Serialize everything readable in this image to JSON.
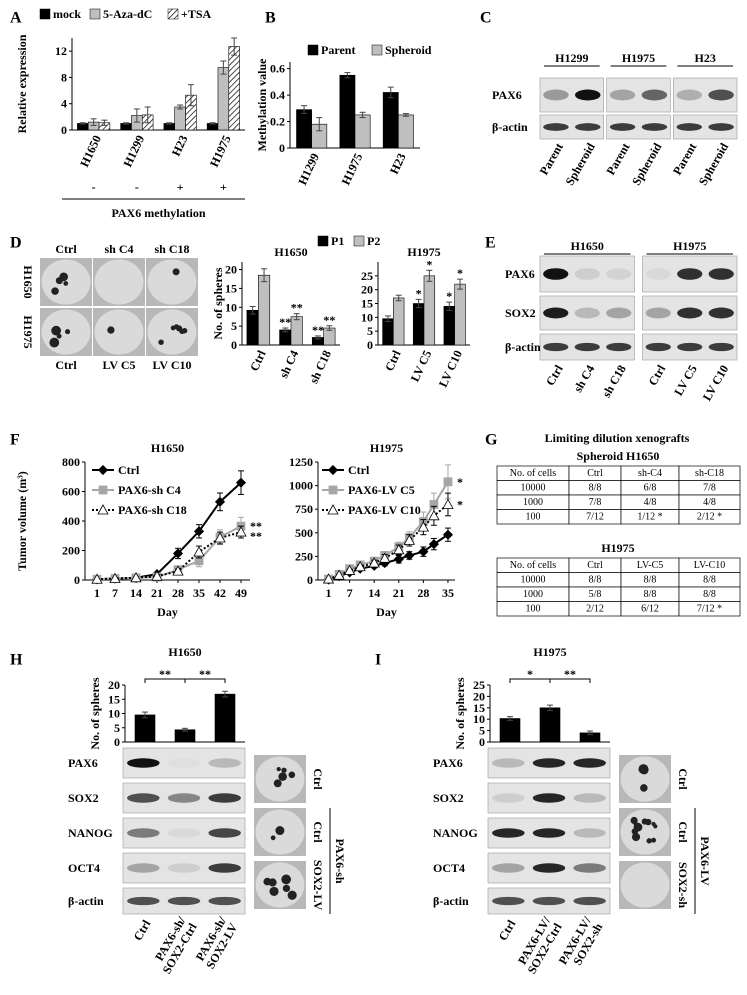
{
  "panel_labels": [
    "A",
    "B",
    "C",
    "D",
    "E",
    "F",
    "G",
    "H",
    "I"
  ],
  "chart_data": [
    {
      "type": "bar",
      "ylabel": "Relative expression",
      "categories": [
        "H1650",
        "H1299",
        "H23",
        "H1975"
      ],
      "series": [
        {
          "name": "mock",
          "color": "#000000",
          "values": [
            1,
            1,
            1,
            1
          ],
          "errors": [
            0.1,
            0.1,
            0.1,
            0.1
          ]
        },
        {
          "name": "5-Aza-dC",
          "color": "#bfbfbf",
          "values": [
            1.2,
            2.2,
            3.5,
            9.5
          ],
          "errors": [
            0.5,
            1.0,
            0.3,
            1.0
          ]
        },
        {
          "name": "+TSA",
          "color": "#ffffff",
          "pattern": "hatch",
          "values": [
            1.1,
            2.3,
            5.3,
            12.7
          ],
          "errors": [
            0.4,
            1.2,
            1.6,
            1.3
          ]
        }
      ],
      "ylim": [
        0,
        14
      ],
      "yticks": [
        0,
        4,
        8,
        12
      ],
      "group_marks": [
        "-",
        "-",
        "+",
        "+"
      ],
      "group_label": "PAX6 methylation"
    },
    {
      "type": "bar",
      "ylabel": "Methylation value",
      "categories": [
        "H1299",
        "H1975",
        "H23"
      ],
      "series": [
        {
          "name": "Parent",
          "color": "#000000",
          "values": [
            0.29,
            0.55,
            0.42
          ],
          "errors": [
            0.03,
            0.02,
            0.04
          ]
        },
        {
          "name": "Spheroid",
          "color": "#bfbfbf",
          "values": [
            0.18,
            0.25,
            0.25
          ],
          "errors": [
            0.05,
            0.02,
            0.01
          ]
        }
      ],
      "ylim": [
        0,
        0.65
      ],
      "yticks": [
        0,
        0.2,
        0.4,
        0.6
      ]
    },
    {
      "type": "bar",
      "title": "H1650",
      "ylabel": "No. of spheres",
      "categories": [
        "Ctrl",
        "sh C4",
        "sh C18"
      ],
      "series": [
        {
          "name": "P1",
          "color": "#000000",
          "values": [
            9.2,
            4,
            2
          ],
          "errors": [
            1,
            0.5,
            0.4
          ]
        },
        {
          "name": "P2",
          "color": "#bfbfbf",
          "values": [
            18.5,
            7.5,
            4.5
          ],
          "errors": [
            1.7,
            0.8,
            0.6
          ]
        }
      ],
      "ylim": [
        0,
        22
      ],
      "yticks": [
        0,
        5,
        10,
        15,
        20
      ],
      "annotations": [
        {
          "text": "**",
          "series": 0,
          "index": 1
        },
        {
          "text": "**",
          "series": 1,
          "index": 1
        },
        {
          "text": "**",
          "series": 0,
          "index": 2
        },
        {
          "text": "**",
          "series": 1,
          "index": 2
        }
      ]
    },
    {
      "type": "bar",
      "title": "H1975",
      "categories": [
        "Ctrl",
        "LV C5",
        "LV C10"
      ],
      "series": [
        {
          "color": "#000000",
          "values": [
            9.5,
            15,
            14
          ],
          "errors": [
            1,
            1.5,
            1.5
          ]
        },
        {
          "color": "#bfbfbf",
          "values": [
            17,
            25,
            22
          ],
          "errors": [
            1,
            2,
            1.8
          ]
        }
      ],
      "ylim": [
        0,
        30
      ],
      "yticks": [
        0,
        5,
        10,
        15,
        20,
        25
      ],
      "annotations": [
        {
          "text": "*",
          "series": 0,
          "index": 1
        },
        {
          "text": "*",
          "series": 1,
          "index": 1
        },
        {
          "text": "*",
          "series": 0,
          "index": 2
        },
        {
          "text": "*",
          "series": 1,
          "index": 2
        }
      ]
    },
    {
      "type": "line",
      "title": "H1650",
      "ylabel": "Tumor volume (m³)",
      "xlabel": "Day",
      "x": [
        1,
        7,
        14,
        21,
        28,
        35,
        42,
        49
      ],
      "xticks": [
        1,
        7,
        14,
        21,
        28,
        35,
        42,
        49
      ],
      "xlim": [
        -3,
        52
      ],
      "ylim": [
        0,
        800
      ],
      "yticks": [
        0,
        200,
        400,
        600,
        800
      ],
      "series": [
        {
          "name": "Ctrl",
          "color": "#000000",
          "marker": "diamond",
          "values": [
            5,
            10,
            15,
            40,
            180,
            330,
            530,
            660
          ],
          "errors": [
            0,
            5,
            5,
            10,
            35,
            45,
            60,
            80
          ]
        },
        {
          "name": "PAX6-sh C4",
          "color": "#a6a6a6",
          "marker": "square",
          "values": [
            5,
            10,
            15,
            20,
            70,
            130,
            290,
            365
          ],
          "errors": [
            0,
            5,
            5,
            10,
            20,
            40,
            50,
            60
          ]
        },
        {
          "name": "PAX6-sh C18",
          "color": "#000000",
          "marker": "triangle",
          "dash": "dotted",
          "values": [
            5,
            10,
            15,
            25,
            60,
            190,
            285,
            325
          ],
          "errors": [
            0,
            5,
            5,
            10,
            15,
            40,
            40,
            40
          ]
        }
      ],
      "annotations": [
        {
          "text": "**",
          "series": 1
        },
        {
          "text": "**",
          "series": 2
        }
      ]
    },
    {
      "type": "line",
      "title": "H1975",
      "xlabel": "Day",
      "x": [
        1,
        4,
        7,
        10,
        14,
        17,
        21,
        24,
        28,
        31,
        35
      ],
      "xticks": [
        1,
        7,
        14,
        21,
        28,
        35
      ],
      "xlim": [
        -2,
        37
      ],
      "ylim": [
        0,
        1250
      ],
      "yticks": [
        0,
        250,
        500,
        750,
        1000,
        1250
      ],
      "series": [
        {
          "name": "Ctrl",
          "color": "#000000",
          "marker": "diamond",
          "values": [
            5,
            40,
            80,
            120,
            150,
            180,
            220,
            260,
            300,
            380,
            480
          ],
          "errors": [
            5,
            10,
            15,
            20,
            20,
            30,
            40,
            40,
            50,
            60,
            70
          ]
        },
        {
          "name": "PAX6-LV C5",
          "color": "#a6a6a6",
          "marker": "square",
          "values": [
            10,
            60,
            120,
            160,
            200,
            260,
            350,
            450,
            620,
            800,
            1040
          ],
          "errors": [
            5,
            10,
            15,
            20,
            30,
            40,
            50,
            60,
            100,
            120,
            180
          ]
        },
        {
          "name": "PAX6-LV C10",
          "color": "#000000",
          "marker": "triangle",
          "dash": "dotted",
          "values": [
            10,
            50,
            100,
            140,
            180,
            230,
            320,
            420,
            560,
            680,
            800
          ],
          "errors": [
            5,
            10,
            15,
            20,
            30,
            40,
            50,
            60,
            80,
            100,
            120
          ]
        }
      ],
      "annotations": [
        {
          "text": "*",
          "series": 1
        },
        {
          "text": "*",
          "series": 2
        }
      ]
    },
    {
      "type": "bar",
      "title": "H1650",
      "ylabel": "No. of spheres",
      "color": "#000000",
      "values": [
        9.5,
        4.3,
        16.8
      ],
      "errors": [
        1,
        0.5,
        1
      ],
      "ylim": [
        0,
        20
      ],
      "yticks": [
        0,
        5,
        10,
        15,
        20
      ],
      "comparisons": [
        {
          "text": "**",
          "from": 0,
          "to": 1
        },
        {
          "text": "**",
          "from": 1,
          "to": 2
        }
      ]
    },
    {
      "type": "bar",
      "title": "H1975",
      "ylabel": "No. of spheres",
      "color": "#000000",
      "values": [
        10.3,
        15,
        4
      ],
      "errors": [
        0.8,
        1.2,
        0.8
      ],
      "ylim": [
        0,
        25
      ],
      "yticks": [
        0,
        5,
        10,
        15,
        20,
        25
      ],
      "comparisons": [
        {
          "text": "*",
          "from": 0,
          "to": 1
        },
        {
          "text": "**",
          "from": 1,
          "to": 2
        }
      ]
    }
  ],
  "blots": [
    {
      "groups": [
        "H1299",
        "H1975",
        "H23"
      ],
      "rows": [
        "PAX6",
        "β-actin"
      ],
      "lanes": [
        "Parent",
        "Spheroid",
        "Parent",
        "Spheroid",
        "Parent",
        "Spheroid"
      ]
    },
    {
      "groups": [
        "H1650",
        "H1975"
      ],
      "rows": [
        "PAX6",
        "SOX2",
        "β-actin"
      ],
      "lanes": [
        "Ctrl",
        "sh C4",
        "sh C18",
        "Ctrl",
        "LV C5",
        "LV C10"
      ]
    },
    {
      "rows": [
        "PAX6",
        "SOX2",
        "NANOG",
        "OCT4",
        "β-actin"
      ],
      "lanes": [
        "Ctrl",
        [
          "PAX6-sh/",
          "SOX2-Ctrl"
        ],
        [
          "PAX6-sh/",
          "SOX2-LV"
        ]
      ]
    },
    {
      "rows": [
        "PAX6",
        "SOX2",
        "NANOG",
        "OCT4",
        "β-actin"
      ],
      "lanes": [
        "Ctrl",
        [
          "PAX6-LV/",
          "SOX2-Ctrl"
        ],
        [
          "PAX6-LV/",
          "SOX2-sh"
        ]
      ]
    }
  ],
  "tables": {
    "title": "Limiting dilution xenografts",
    "items": [
      {
        "title": "Spheroid H1650",
        "header": [
          "No. of cells",
          "Ctrl",
          "sh-C4",
          "sh-C18"
        ],
        "rows": [
          [
            "10000",
            "8/8",
            "6/8",
            "7/8"
          ],
          [
            "1000",
            "7/8",
            "4/8",
            "4/8"
          ],
          [
            "100",
            "7/12",
            "1/12 *",
            "2/12 *"
          ]
        ]
      },
      {
        "title": "H1975",
        "header": [
          "No. of cells",
          "Ctrl",
          "LV-C5",
          "LV-C10"
        ],
        "rows": [
          [
            "10000",
            "8/8",
            "8/8",
            "8/8"
          ],
          [
            "1000",
            "5/8",
            "8/8",
            "8/8"
          ],
          [
            "100",
            "2/12",
            "6/12",
            "7/12 *"
          ]
        ]
      }
    ]
  },
  "images": [
    {
      "top": [
        "Ctrl",
        "sh C4",
        "sh C18"
      ],
      "bottom": [
        "Ctrl",
        "LV C5",
        "LV C10"
      ],
      "side": [
        "H1650",
        "H1975"
      ]
    },
    {
      "labels": [
        "Ctrl",
        "Ctrl",
        "SOX2-LV"
      ],
      "group": "PAX6-sh"
    },
    {
      "labels": [
        "Ctrl",
        "Ctrl",
        "SOX2-sh"
      ],
      "group": "PAX6-LV"
    }
  ]
}
